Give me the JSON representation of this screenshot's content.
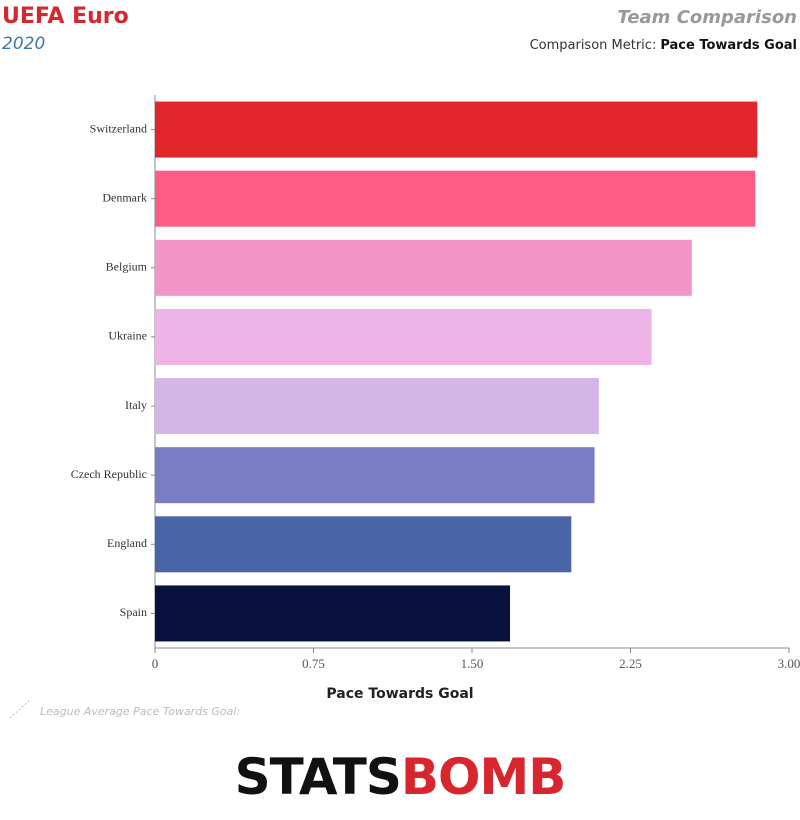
{
  "chart_data": {
    "type": "hbar",
    "title": "UEFA Euro",
    "subtitle": "2020",
    "header_title": "Team Comparison",
    "metric_label": "Comparison Metric:",
    "metric": "Pace Towards Goal",
    "x_label": "Pace Towards Goal",
    "annotation": "League Average Pace Towards Goal:",
    "logo": [
      "STATS",
      "BOMB"
    ],
    "categories": [
      "Switzerland",
      "Denmark",
      "Belgium",
      "Ukraine",
      "Italy",
      "Czech Republic",
      "England",
      "Spain"
    ],
    "values": [
      2.85,
      2.84,
      2.54,
      2.35,
      2.1,
      2.08,
      1.97,
      1.68
    ],
    "colors": [
      "#e0252b",
      "#ff5c85",
      "#f495c9",
      "#eeb4e8",
      "#d4b5e6",
      "#7a7cc4",
      "#4a64a8",
      "#08103d"
    ],
    "xlim": [
      0,
      3
    ],
    "xticks": [
      0,
      0.75,
      {
        "value": 1.5,
        "label": "1.50"
      },
      2.25,
      {
        "value": 3,
        "label": "3.00"
      }
    ],
    "grid": false
  }
}
